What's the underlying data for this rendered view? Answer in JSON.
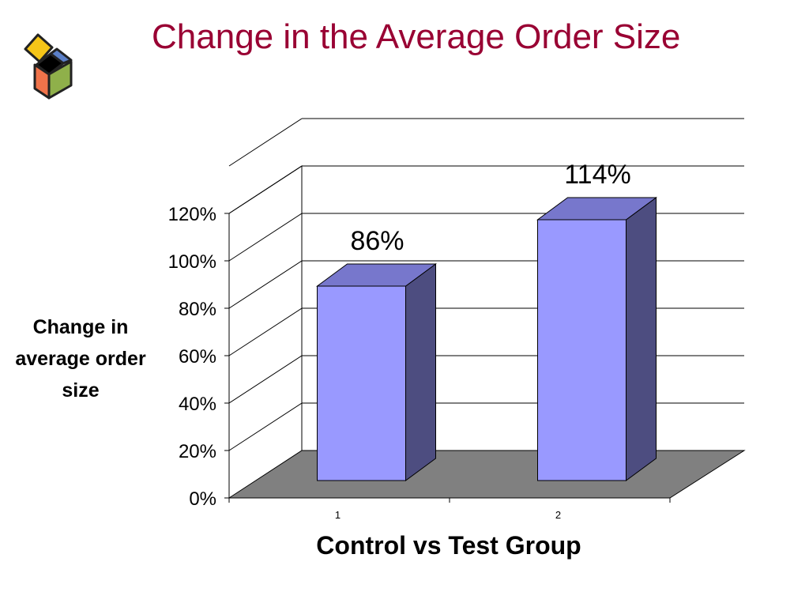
{
  "slide": {
    "title": "Change in the Average Order Size"
  },
  "chart_data": {
    "type": "bar",
    "categories": [
      "1",
      "2"
    ],
    "values": [
      0.86,
      1.14
    ],
    "data_labels": [
      "86%",
      "114%"
    ],
    "xlabel": "Control vs Test Group",
    "ylabel": "Change in average order size",
    "ylim": [
      0,
      1.2
    ],
    "yticks": [
      0,
      0.2,
      0.4,
      0.6,
      0.8,
      1.0,
      1.2
    ],
    "ytick_labels": [
      "0%",
      "20%",
      "40%",
      "60%",
      "80%",
      "100%",
      "120%"
    ],
    "grid": true,
    "three_d": true,
    "legend": "none",
    "colors": {
      "bar_front": "#9999ff",
      "bar_top": "#7777cc",
      "bar_side": "#4d4d80",
      "floor": "#808080",
      "gridline": "#000000"
    }
  },
  "logo": {
    "colors": [
      "#f5c518",
      "#5b7fc7",
      "#8fb04a",
      "#f0734a",
      "#000000"
    ]
  }
}
